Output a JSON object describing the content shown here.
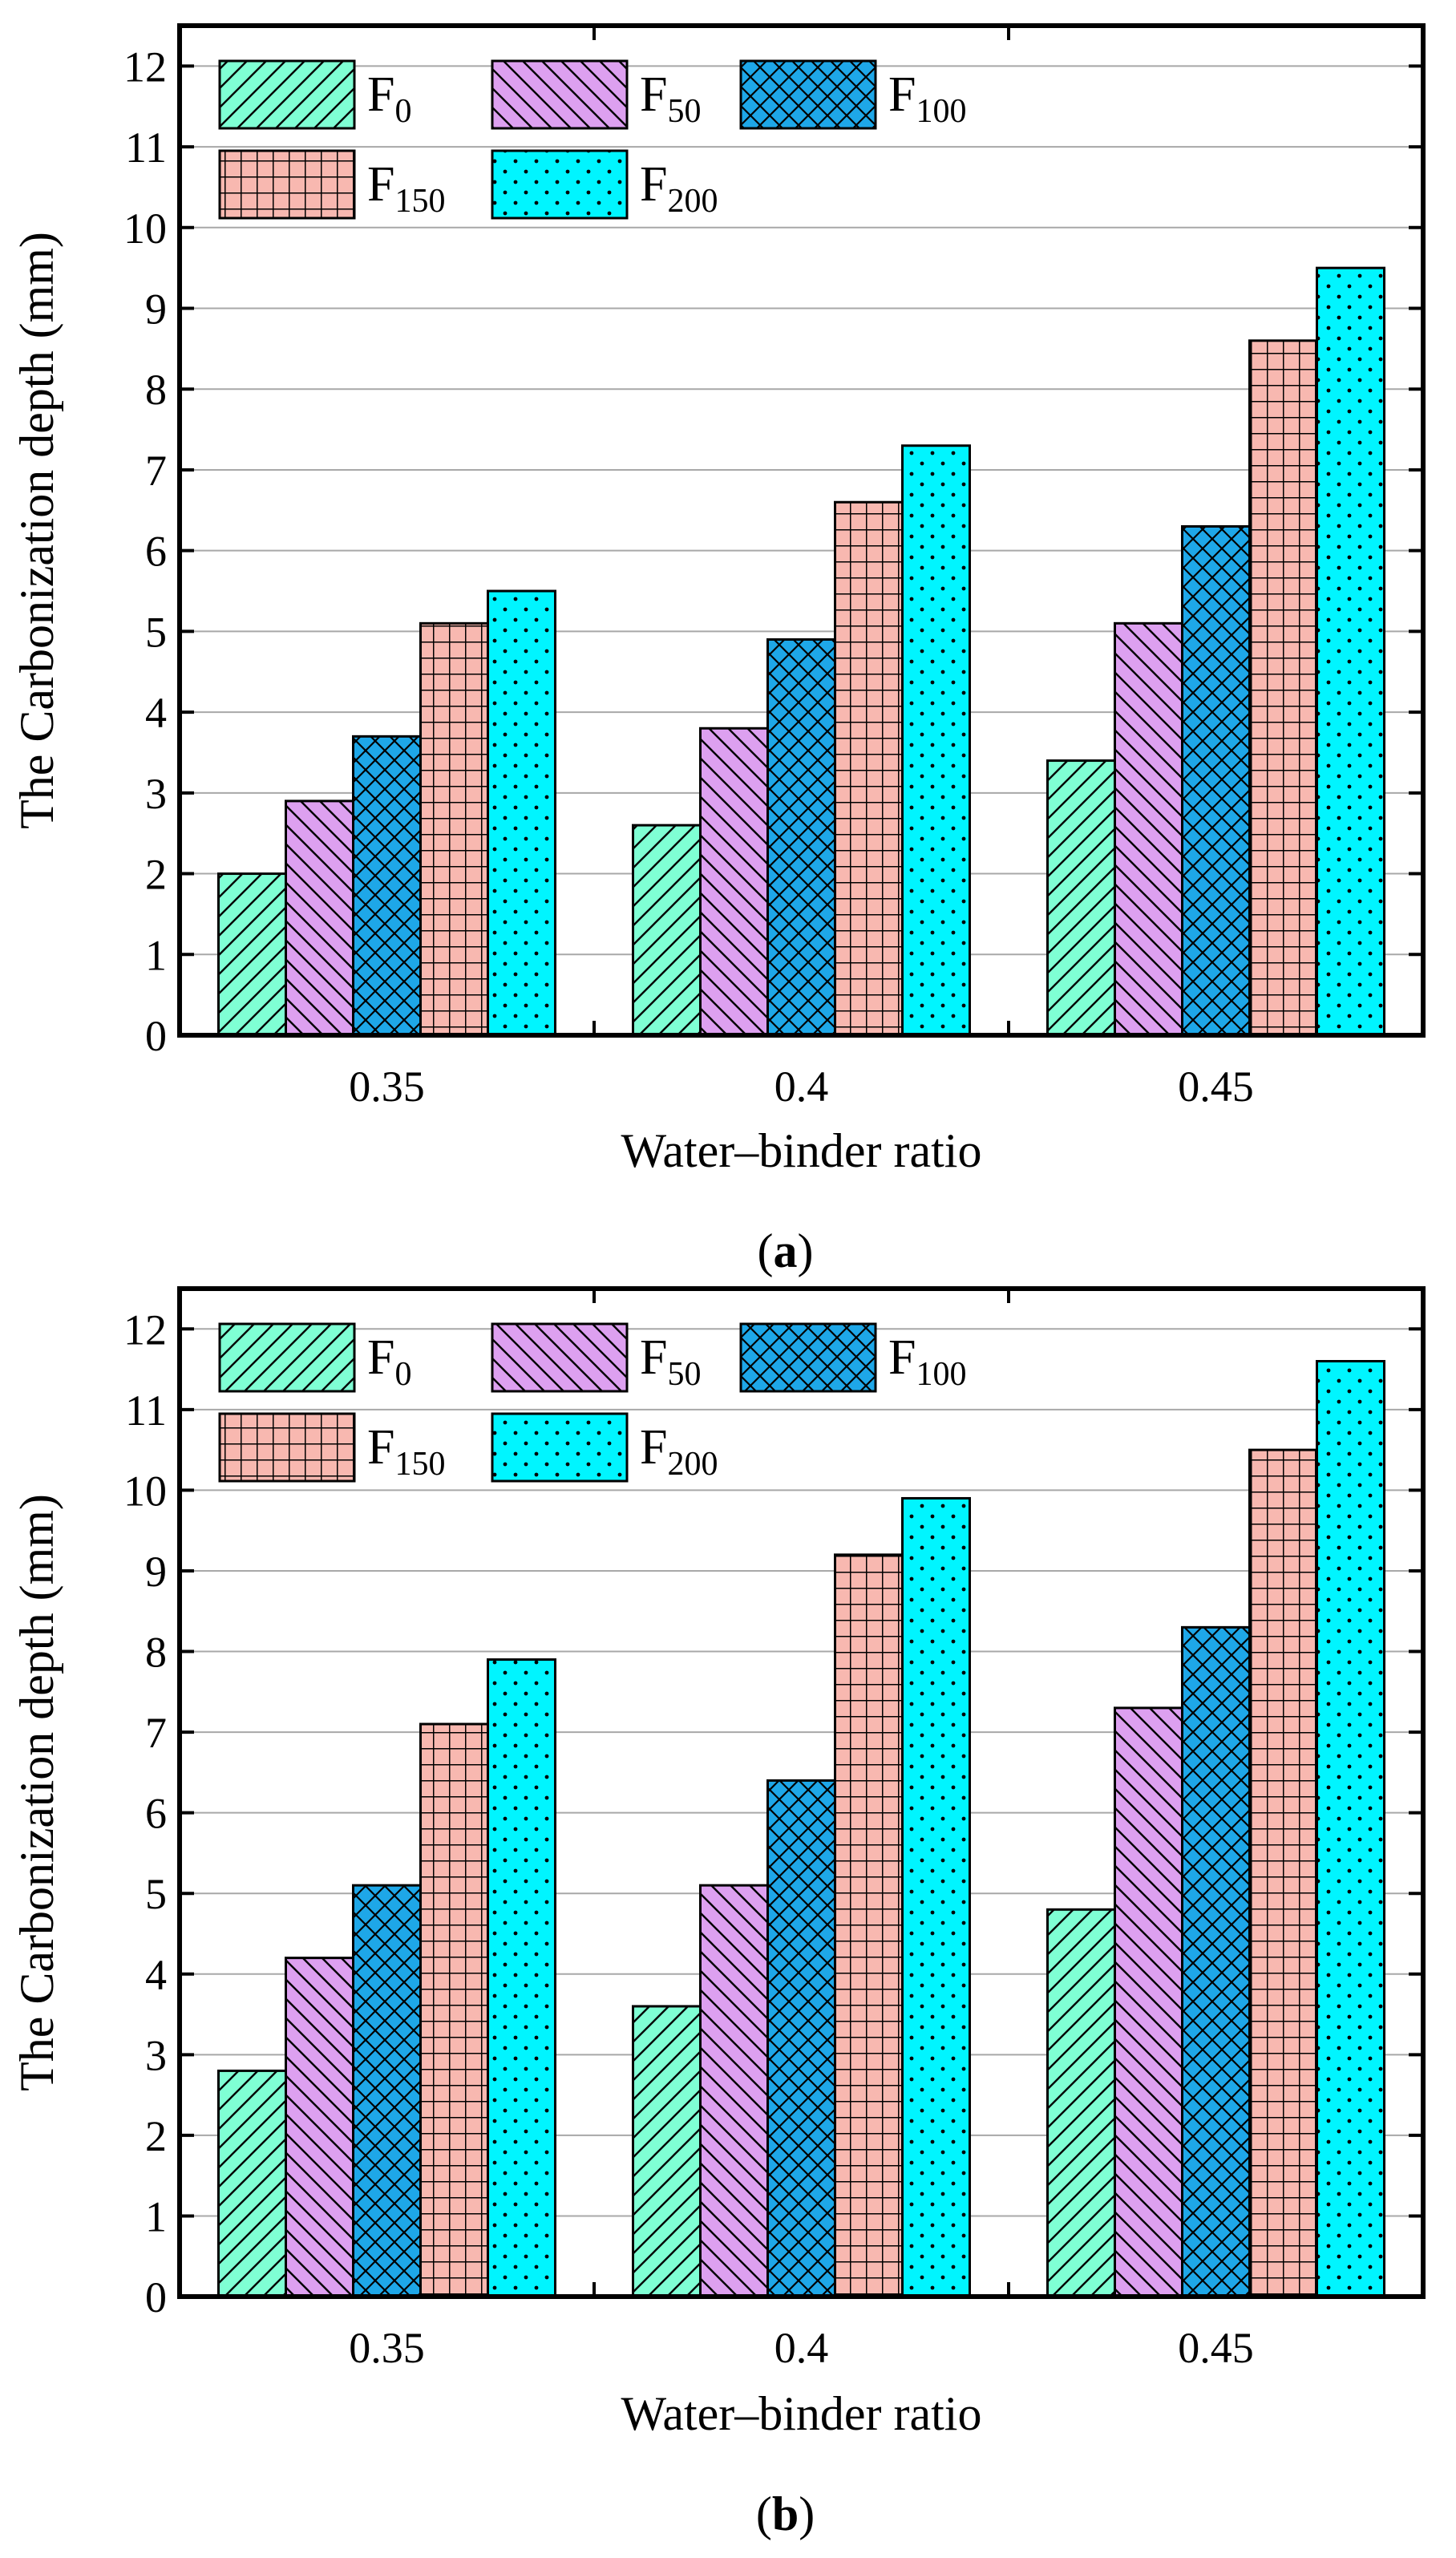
{
  "chart_data": [
    {
      "type": "bar",
      "panel_label": "a",
      "xlabel": "Water–binder ratio",
      "ylabel": "The Carbonization depth (mm)",
      "ylim": [
        0,
        12.5
      ],
      "yticks": [
        0,
        1,
        2,
        3,
        4,
        5,
        6,
        7,
        8,
        9,
        10,
        11,
        12
      ],
      "grid": true,
      "categories": [
        "0.35",
        "0.4",
        "0.45"
      ],
      "series": [
        {
          "name": "F0",
          "base": "F",
          "sub": "0",
          "color": "#7fffd4",
          "pattern": "diag-forward",
          "values": [
            2.0,
            2.6,
            3.4
          ]
        },
        {
          "name": "F50",
          "base": "F",
          "sub": "50",
          "color": "#dda0f0",
          "pattern": "diag-back",
          "values": [
            2.9,
            3.8,
            5.1
          ]
        },
        {
          "name": "F100",
          "base": "F",
          "sub": "100",
          "color": "#1ea7e8",
          "pattern": "crosshatch",
          "values": [
            3.7,
            4.9,
            6.3
          ]
        },
        {
          "name": "F150",
          "base": "F",
          "sub": "150",
          "color": "#f8b8b0",
          "pattern": "grid",
          "values": [
            5.1,
            6.6,
            8.6
          ]
        },
        {
          "name": "F200",
          "base": "F",
          "sub": "200",
          "color": "#00f5ff",
          "pattern": "dots",
          "values": [
            5.5,
            7.3,
            9.5
          ]
        }
      ],
      "legend": "top-left"
    },
    {
      "type": "bar",
      "panel_label": "b",
      "xlabel": "Water–binder ratio",
      "ylabel": "The Carbonization depth (mm)",
      "ylim": [
        0,
        12.5
      ],
      "yticks": [
        0,
        1,
        2,
        3,
        4,
        5,
        6,
        7,
        8,
        9,
        10,
        11,
        12
      ],
      "grid": true,
      "categories": [
        "0.35",
        "0.4",
        "0.45"
      ],
      "series": [
        {
          "name": "F0",
          "base": "F",
          "sub": "0",
          "color": "#7fffd4",
          "pattern": "diag-forward",
          "values": [
            2.8,
            3.6,
            4.8
          ]
        },
        {
          "name": "F50",
          "base": "F",
          "sub": "50",
          "color": "#dda0f0",
          "pattern": "diag-back",
          "values": [
            4.2,
            5.1,
            7.3
          ]
        },
        {
          "name": "F100",
          "base": "F",
          "sub": "100",
          "color": "#1ea7e8",
          "pattern": "crosshatch",
          "values": [
            5.1,
            6.4,
            8.3
          ]
        },
        {
          "name": "F150",
          "base": "F",
          "sub": "150",
          "color": "#f8b8b0",
          "pattern": "grid",
          "values": [
            7.1,
            9.2,
            10.5
          ]
        },
        {
          "name": "F200",
          "base": "F",
          "sub": "200",
          "color": "#00f5ff",
          "pattern": "dots",
          "values": [
            7.9,
            9.9,
            11.6
          ]
        }
      ],
      "legend": "top-left"
    }
  ]
}
